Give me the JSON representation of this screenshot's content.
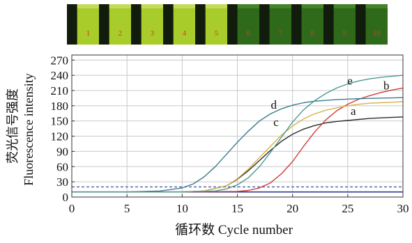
{
  "tubes": {
    "labels": [
      "1",
      "2",
      "3",
      "4",
      "5",
      "6",
      "7",
      "8",
      "9",
      "10"
    ],
    "label_color": "#d83a2a",
    "bright_color": "#a8cc2a",
    "dark_color": "#2f6a1a"
  },
  "chart_data": {
    "type": "line",
    "title": "",
    "xlabel": "循环数 Cycle number",
    "ylabel_cn": "荧光信号强度",
    "ylabel_en": "Fluorescence intensity",
    "xlim": [
      0,
      30
    ],
    "ylim": [
      0,
      280
    ],
    "xticks": [
      0,
      5,
      10,
      15,
      20,
      25,
      30
    ],
    "yticks": [
      0,
      30,
      60,
      90,
      120,
      150,
      180,
      210,
      240,
      270
    ],
    "grid": true,
    "threshold": {
      "value": 20,
      "style": "dashed",
      "color": "#4a5aa8"
    },
    "baseline": {
      "value": 10,
      "color": "#2a3a9a"
    },
    "series": [
      {
        "name": "a",
        "color": "#2a2a2a",
        "x": [
          0,
          5,
          10,
          12,
          14,
          15,
          16,
          17,
          18,
          19,
          20,
          21,
          22,
          23,
          24,
          25,
          26,
          27,
          28,
          29,
          30
        ],
        "y": [
          10,
          10,
          10,
          12,
          22,
          35,
          52,
          72,
          92,
          110,
          124,
          134,
          141,
          146,
          149,
          151,
          153,
          155,
          156,
          157,
          158
        ]
      },
      {
        "name": "b",
        "color": "#d03a3a",
        "x": [
          0,
          5,
          10,
          15,
          16,
          17,
          18,
          19,
          20,
          21,
          22,
          23,
          24,
          25,
          26,
          27,
          28,
          29,
          30
        ],
        "y": [
          10,
          10,
          10,
          11,
          13,
          18,
          28,
          46,
          70,
          100,
          128,
          152,
          170,
          183,
          193,
          200,
          206,
          211,
          215
        ]
      },
      {
        "name": "c",
        "color": "#d9b04a",
        "x": [
          0,
          5,
          10,
          12,
          14,
          15,
          16,
          17,
          18,
          19,
          20,
          21,
          22,
          23,
          24,
          25,
          26,
          27,
          28,
          29,
          30
        ],
        "y": [
          10,
          10,
          10,
          12,
          22,
          36,
          55,
          78,
          100,
          122,
          140,
          154,
          164,
          171,
          176,
          180,
          183,
          185,
          186,
          187,
          188
        ]
      },
      {
        "name": "d",
        "color": "#3a7a90",
        "x": [
          0,
          5,
          8,
          10,
          11,
          12,
          13,
          14,
          15,
          16,
          17,
          18,
          19,
          20,
          21,
          22,
          24,
          26,
          28,
          30
        ],
        "y": [
          10,
          10,
          12,
          18,
          26,
          40,
          60,
          84,
          108,
          130,
          150,
          164,
          174,
          181,
          186,
          189,
          192,
          194,
          195,
          196
        ]
      },
      {
        "name": "e",
        "color": "#4a9a90",
        "x": [
          0,
          5,
          10,
          13,
          14,
          15,
          16,
          17,
          18,
          19,
          20,
          21,
          22,
          23,
          24,
          25,
          26,
          27,
          28,
          29,
          30
        ],
        "y": [
          10,
          10,
          10,
          12,
          16,
          24,
          38,
          60,
          88,
          118,
          148,
          172,
          190,
          204,
          215,
          223,
          229,
          233,
          236,
          238,
          240
        ]
      }
    ],
    "annotations": [
      {
        "text": "a",
        "x": 25.5,
        "y": 162
      },
      {
        "text": "b",
        "x": 28.5,
        "y": 212
      },
      {
        "text": "c",
        "x": 18.5,
        "y": 140
      },
      {
        "text": "d",
        "x": 18.3,
        "y": 174
      },
      {
        "text": "e",
        "x": 25.2,
        "y": 222
      }
    ]
  }
}
